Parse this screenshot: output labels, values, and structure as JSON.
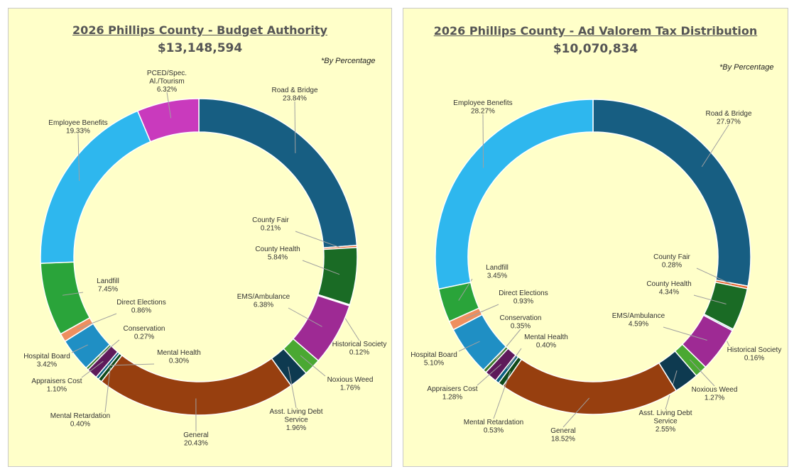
{
  "chart_data": [
    {
      "type": "pie",
      "donut": true,
      "title": "2026 Phillips County - Budget Authority",
      "subtitle": "$13,148,594",
      "note": "*By Percentage",
      "unit": "%",
      "slices": [
        {
          "label": "Road & Bridge",
          "value": 23.84,
          "color": "#175e82"
        },
        {
          "label": "County Fair",
          "value": 0.21,
          "color": "#e8632c"
        },
        {
          "label": "County Health",
          "value": 5.84,
          "color": "#1a6b25"
        },
        {
          "label": "Historical Society",
          "value": 0.12,
          "color": "#8fc6e0"
        },
        {
          "label": "EMS/Ambulance",
          "value": 6.38,
          "color": "#9e2a94"
        },
        {
          "label": "Noxious Weed",
          "value": 1.76,
          "color": "#4aa832"
        },
        {
          "label": "Asst. Living Debt Service",
          "value": 1.96,
          "color": "#0e3a50"
        },
        {
          "label": "General",
          "value": 20.43,
          "color": "#973f0f"
        },
        {
          "label": "Mental Retardation",
          "value": 0.4,
          "color": "#0f4a1a"
        },
        {
          "label": "Mental Health",
          "value": 0.3,
          "color": "#0b5f80"
        },
        {
          "label": "Appraisers Cost",
          "value": 1.1,
          "color": "#5e1a5a"
        },
        {
          "label": "Conservation",
          "value": 0.27,
          "color": "#3c7a2a"
        },
        {
          "label": "Hospital Board",
          "value": 3.42,
          "color": "#1f8fc4"
        },
        {
          "label": "Direct Elections",
          "value": 0.86,
          "color": "#ee8f5f"
        },
        {
          "label": "Landfill",
          "value": 7.45,
          "color": "#2aa43a"
        },
        {
          "label": "Employee Benefits",
          "value": 19.33,
          "color": "#2eb7ee"
        },
        {
          "label": "PCED/Spec. Al./Tourism",
          "value": 6.32,
          "color": "#c93abd"
        }
      ]
    },
    {
      "type": "pie",
      "donut": true,
      "title": "2026 Phillips County  - Ad Valorem Tax Distribution ",
      "subtitle": "$10,070,834",
      "note": "*By Percentage",
      "unit": "%",
      "slices": [
        {
          "label": "Road & Bridge",
          "value": 27.97,
          "color": "#175e82"
        },
        {
          "label": "County Fair",
          "value": 0.28,
          "color": "#e8632c"
        },
        {
          "label": "County Health",
          "value": 4.34,
          "color": "#1a6b25"
        },
        {
          "label": "Historical Society",
          "value": 0.16,
          "color": "#8fc6e0"
        },
        {
          "label": "EMS/Ambulance",
          "value": 4.59,
          "color": "#9e2a94"
        },
        {
          "label": "Noxious Weed",
          "value": 1.27,
          "color": "#4aa832"
        },
        {
          "label": "Asst. Living Debt Service",
          "value": 2.55,
          "color": "#0e3a50"
        },
        {
          "label": "General",
          "value": 18.52,
          "color": "#973f0f"
        },
        {
          "label": "Mental Retardation",
          "value": 0.53,
          "color": "#0f4a1a"
        },
        {
          "label": "Mental Health",
          "value": 0.4,
          "color": "#0b5f80"
        },
        {
          "label": "Appraisers Cost",
          "value": 1.28,
          "color": "#5e1a5a"
        },
        {
          "label": "Conservation",
          "value": 0.35,
          "color": "#3c7a2a"
        },
        {
          "label": "Hospital Board",
          "value": 5.1,
          "color": "#1f8fc4"
        },
        {
          "label": "Direct Elections",
          "value": 0.93,
          "color": "#ee8f5f"
        },
        {
          "label": "Landfill",
          "value": 3.45,
          "color": "#2aa43a"
        },
        {
          "label": "Employee Benefits",
          "value": 28.27,
          "color": "#2eb7ee"
        }
      ]
    }
  ]
}
